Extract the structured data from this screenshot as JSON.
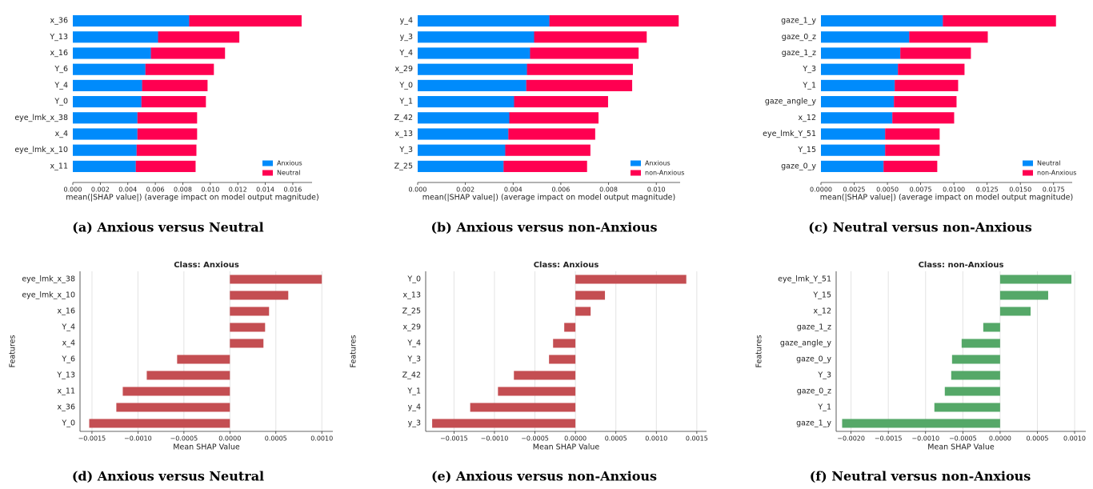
{
  "chart_data": [
    {
      "type": "bar",
      "orientation": "horizontal",
      "stacked": true,
      "caption": "(a) Anxious versus Neutral",
      "xlabel": "mean(|SHAP value|) (average impact on model output magnitude)",
      "categories": [
        "x_36",
        "Y_13",
        "x_16",
        "Y_6",
        "Y_4",
        "Y_0",
        "eye_lmk_x_38",
        "x_4",
        "eye_lmk_x_10",
        "x_11"
      ],
      "series": [
        {
          "name": "Anxious",
          "color": "#008bfb",
          "values": [
            0.00846,
            0.0062,
            0.00568,
            0.00528,
            0.00504,
            0.00499,
            0.0047,
            0.0047,
            0.00464,
            0.00458
          ]
        },
        {
          "name": "Neutral",
          "color": "#ff0051",
          "values": [
            0.00818,
            0.00591,
            0.00539,
            0.00498,
            0.00476,
            0.00469,
            0.00434,
            0.00434,
            0.00435,
            0.00435
          ]
        }
      ],
      "xlim": [
        0,
        0.0174
      ],
      "xticks": [
        {
          "value": 0,
          "label": "0.000"
        },
        {
          "value": 0.002,
          "label": "0.002"
        },
        {
          "value": 0.004,
          "label": "0.004"
        },
        {
          "value": 0.006,
          "label": "0.006"
        },
        {
          "value": 0.008,
          "label": "0.008"
        },
        {
          "value": 0.01,
          "label": "0.010"
        },
        {
          "value": 0.012,
          "label": "0.012"
        },
        {
          "value": 0.014,
          "label": "0.014"
        },
        {
          "value": 0.016,
          "label": "0.016"
        }
      ],
      "legend": "lower right"
    },
    {
      "type": "bar",
      "orientation": "horizontal",
      "stacked": true,
      "caption": "(b) Anxious versus non-Anxious",
      "xlabel": "mean(|SHAP value|) (average impact on model output magnitude)",
      "categories": [
        "y_4",
        "y_3",
        "Y_4",
        "x_29",
        "Y_0",
        "Y_1",
        "Z_42",
        "x_13",
        "Y_3",
        "Z_25"
      ],
      "series": [
        {
          "name": "Anxious",
          "color": "#008bfb",
          "values": [
            0.00552,
            0.00488,
            0.00471,
            0.00458,
            0.00455,
            0.00404,
            0.00384,
            0.0038,
            0.00367,
            0.0036
          ]
        },
        {
          "name": "non-Anxious",
          "color": "#ff0051",
          "values": [
            0.00542,
            0.00472,
            0.00455,
            0.00444,
            0.00444,
            0.00394,
            0.00374,
            0.00364,
            0.00357,
            0.0035
          ]
        }
      ],
      "xlim": [
        0,
        0.011
      ],
      "xticks": [
        {
          "value": 0,
          "label": "0.000"
        },
        {
          "value": 0.002,
          "label": "0.002"
        },
        {
          "value": 0.004,
          "label": "0.004"
        },
        {
          "value": 0.006,
          "label": "0.006"
        },
        {
          "value": 0.008,
          "label": "0.008"
        },
        {
          "value": 0.01,
          "label": "0.010"
        }
      ],
      "legend": "lower right"
    },
    {
      "type": "bar",
      "orientation": "horizontal",
      "stacked": true,
      "caption": "(c) Neutral versus non-Anxious",
      "xlabel": "mean(|SHAP value|) (average impact on model output magnitude)",
      "categories": [
        "gaze_1_y",
        "gaze_0_z",
        "gaze_1_z",
        "Y_3",
        "Y_1",
        "gaze_angle_y",
        "x_12",
        "eye_lmk_Y_51",
        "Y_15",
        "gaze_0_y"
      ],
      "series": [
        {
          "name": "Neutral",
          "color": "#008bfb",
          "values": [
            0.00917,
            0.00664,
            0.00597,
            0.00579,
            0.00555,
            0.00549,
            0.00537,
            0.00483,
            0.00483,
            0.00471
          ]
        },
        {
          "name": "non-Anxious",
          "color": "#ff0051",
          "values": [
            0.00851,
            0.00591,
            0.00531,
            0.00501,
            0.00477,
            0.00471,
            0.00465,
            0.0041,
            0.0041,
            0.00404
          ]
        }
      ],
      "xlim": [
        0,
        0.0189
      ],
      "xticks": [
        {
          "value": 0,
          "label": "0.0000"
        },
        {
          "value": 0.0025,
          "label": "0.0025"
        },
        {
          "value": 0.005,
          "label": "0.0050"
        },
        {
          "value": 0.0075,
          "label": "0.0075"
        },
        {
          "value": 0.01,
          "label": "0.0100"
        },
        {
          "value": 0.0125,
          "label": "0.0125"
        },
        {
          "value": 0.015,
          "label": "0.0150"
        },
        {
          "value": 0.0175,
          "label": "0.0175"
        }
      ],
      "legend": "lower right"
    },
    {
      "type": "bar",
      "orientation": "horizontal",
      "title": "Class: Anxious",
      "caption": "(d) Anxious versus Neutral",
      "xlabel": "Mean SHAP Value",
      "ylabel": "Features",
      "categories": [
        "eye_lmk_x_38",
        "eye_lmk_x_10",
        "x_16",
        "Y_4",
        "x_4",
        "Y_6",
        "Y_13",
        "x_11",
        "x_36",
        "Y_0"
      ],
      "values": [
        0.001,
        0.000635,
        0.000426,
        0.000383,
        0.000365,
        -0.000574,
        -0.000904,
        -0.001165,
        -0.001235,
        -0.00153
      ],
      "color": "#c44e52",
      "xlim": [
        -0.00163,
        0.00112
      ],
      "xticks": [
        {
          "value": -0.0015,
          "label": "−0.0015"
        },
        {
          "value": -0.001,
          "label": "−0.0010"
        },
        {
          "value": -0.0005,
          "label": "−0.0005"
        },
        {
          "value": 0,
          "label": "0.0000"
        },
        {
          "value": 0.0005,
          "label": "0.0005"
        },
        {
          "value": 0.001,
          "label": "0.0010"
        }
      ],
      "grid": true
    },
    {
      "type": "bar",
      "orientation": "horizontal",
      "title": "Class: Anxious",
      "caption": "(e) Anxious versus non-Anxious",
      "xlabel": "Mean SHAP Value",
      "ylabel": "Features",
      "categories": [
        "Y_0",
        "x_13",
        "Z_25",
        "x_29",
        "Y_4",
        "Y_3",
        "Z_42",
        "Y_1",
        "y_4",
        "y_3"
      ],
      "values": [
        0.00137,
        0.000365,
        0.000188,
        -0.000138,
        -0.000276,
        -0.000326,
        -0.00076,
        -0.000957,
        -0.0013,
        -0.00177
      ],
      "color": "#c44e52",
      "xlim": [
        -0.00185,
        0.00162
      ],
      "xticks": [
        {
          "value": -0.0015,
          "label": "−0.0015"
        },
        {
          "value": -0.001,
          "label": "−0.0010"
        },
        {
          "value": -0.0005,
          "label": "−0.0005"
        },
        {
          "value": 0,
          "label": "0.0000"
        },
        {
          "value": 0.0005,
          "label": "0.0005"
        },
        {
          "value": 0.001,
          "label": "0.0010"
        },
        {
          "value": 0.0015,
          "label": "0.0015"
        }
      ],
      "grid": true
    },
    {
      "type": "bar",
      "orientation": "horizontal",
      "title": "Class: non-Anxious",
      "caption": "(f) Neutral versus non-Anxious",
      "xlabel": "Mean SHAP Value",
      "ylabel": "Features",
      "categories": [
        "eye_lmk_Y_51",
        "Y_15",
        "x_12",
        "gaze_1_z",
        "gaze_angle_y",
        "gaze_0_y",
        "Y_3",
        "gaze_0_z",
        "Y_1",
        "gaze_1_y"
      ],
      "values": [
        0.000957,
        0.000645,
        0.000409,
        -0.000226,
        -0.000516,
        -0.000645,
        -0.000656,
        -0.000742,
        -0.000882,
        -0.00212
      ],
      "color": "#55a868",
      "xlim": [
        -0.0022,
        0.00115
      ],
      "xticks": [
        {
          "value": -0.002,
          "label": "−0.0020"
        },
        {
          "value": -0.0015,
          "label": "−0.0015"
        },
        {
          "value": -0.001,
          "label": "−0.0010"
        },
        {
          "value": -0.0005,
          "label": "−0.0005"
        },
        {
          "value": 0,
          "label": "0.0000"
        },
        {
          "value": 0.0005,
          "label": "0.0005"
        },
        {
          "value": 0.001,
          "label": "0.0010"
        }
      ],
      "grid": true
    }
  ]
}
